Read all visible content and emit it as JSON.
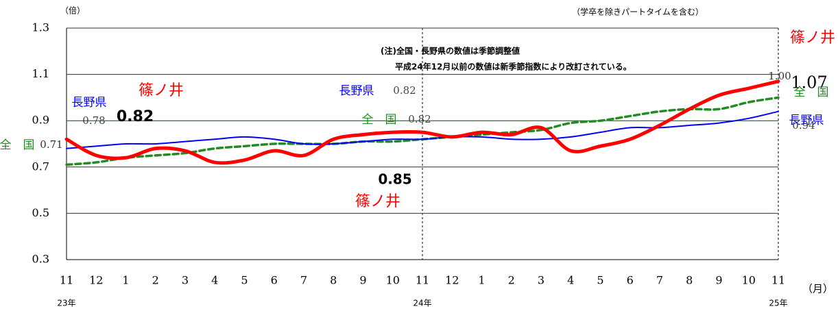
{
  "chart_data": {
    "type": "line",
    "y_unit": "（倍）",
    "subtitle": "（学卒を除きパートタイムを含む）",
    "x_unit": "（月）",
    "notes": [
      "(注)全国・長野県の数値は季節調整値",
      "平成24年12月以前の数値は新季節指数により改訂されている。"
    ],
    "categories": [
      "11",
      "12",
      "1",
      "2",
      "3",
      "4",
      "5",
      "6",
      "7",
      "8",
      "9",
      "10",
      "11",
      "12",
      "1",
      "2",
      "3",
      "4",
      "5",
      "6",
      "7",
      "8",
      "9",
      "10",
      "11"
    ],
    "year_labels": [
      "23年",
      "24年",
      "25年"
    ],
    "ylim": [
      0.3,
      1.3
    ],
    "yticks": [
      0.3,
      0.5,
      0.7,
      0.9,
      1.1,
      1.3
    ],
    "grid": true,
    "series": [
      {
        "name": "篠ノ井",
        "color": "#ff0000",
        "values": [
          0.82,
          0.75,
          0.74,
          0.78,
          0.77,
          0.72,
          0.73,
          0.77,
          0.75,
          0.82,
          0.84,
          0.85,
          0.85,
          0.83,
          0.85,
          0.84,
          0.87,
          0.77,
          0.79,
          0.82,
          0.88,
          0.95,
          1.01,
          1.04,
          1.07
        ]
      },
      {
        "name": "長野県",
        "color": "#0000ff",
        "values": [
          0.78,
          0.79,
          0.8,
          0.8,
          0.81,
          0.82,
          0.83,
          0.82,
          0.8,
          0.8,
          0.81,
          0.82,
          0.82,
          0.83,
          0.83,
          0.82,
          0.82,
          0.83,
          0.85,
          0.87,
          0.87,
          0.88,
          0.89,
          0.91,
          0.94
        ]
      },
      {
        "name": "全　国",
        "color": "#228b22",
        "values": [
          0.71,
          0.72,
          0.74,
          0.75,
          0.76,
          0.78,
          0.79,
          0.8,
          0.8,
          0.8,
          0.81,
          0.81,
          0.82,
          0.83,
          0.84,
          0.85,
          0.86,
          0.89,
          0.9,
          0.92,
          0.94,
          0.95,
          0.95,
          0.98,
          1.0
        ],
        "value_labels": [
          "0.71",
          null,
          null,
          null,
          null,
          null,
          null,
          null,
          null,
          null,
          null,
          null,
          "0.82",
          null,
          null,
          null,
          null,
          null,
          null,
          null,
          null,
          null,
          null,
          null,
          "1.00"
        ]
      }
    ]
  }
}
